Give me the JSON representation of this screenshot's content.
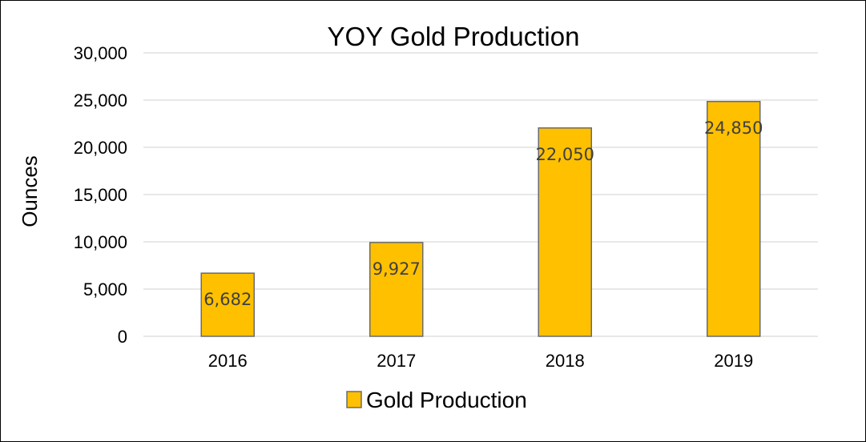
{
  "chart_data": {
    "type": "bar",
    "title": "YOY Gold Production",
    "xlabel": "",
    "ylabel": "Ounces",
    "categories": [
      "2016",
      "2017",
      "2018",
      "2019"
    ],
    "series": [
      {
        "name": "Gold Production",
        "values": [
          6682,
          9927,
          22050,
          24850
        ],
        "color": "#FFC000"
      }
    ],
    "data_labels": [
      "6,682",
      "9,927",
      "22,050",
      "24,850"
    ],
    "y_ticks": [
      "0",
      "5,000",
      "10,000",
      "15,000",
      "20,000",
      "25,000",
      "30,000"
    ],
    "ylim": [
      0,
      30000
    ],
    "grid": true,
    "legend_position": "bottom"
  }
}
